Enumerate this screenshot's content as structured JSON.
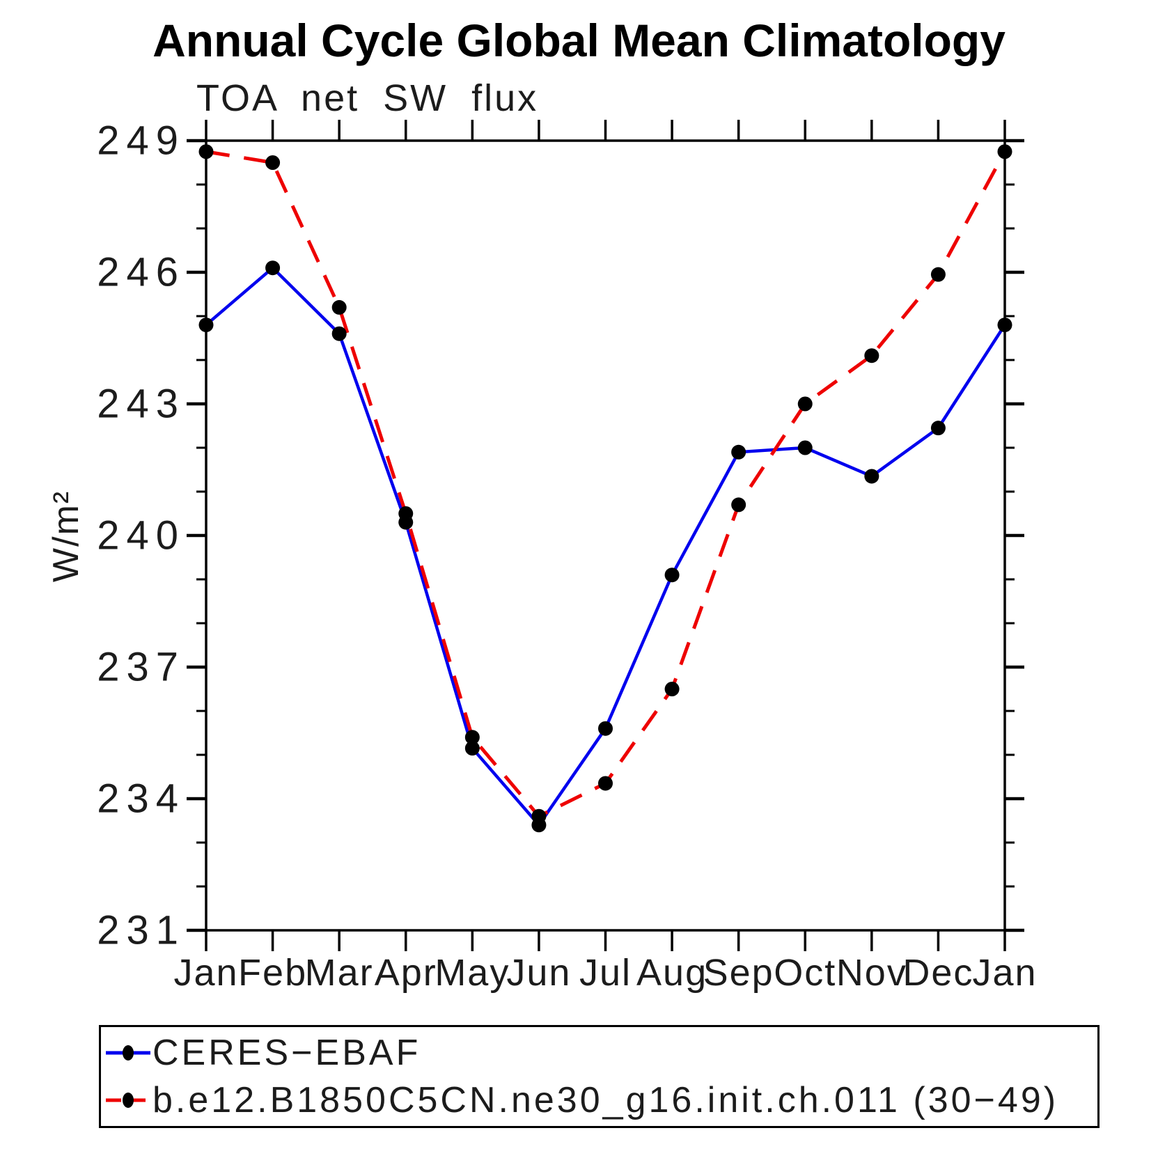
{
  "chart_data": {
    "type": "line",
    "title": "Annual Cycle Global Mean Climatology",
    "subtitle": "TOA net SW flux",
    "ylabel": "W/m²",
    "xlabel": "",
    "x_categories": [
      "Jan",
      "Feb",
      "Mar",
      "Apr",
      "May",
      "Jun",
      "Jul",
      "Aug",
      "Sep",
      "Oct",
      "Nov",
      "Dec",
      "Jan"
    ],
    "ylim": [
      231,
      249
    ],
    "ytick_major_interval": 3,
    "ytick_minor_interval": 1,
    "ytick_labels": [
      "231",
      "234",
      "237",
      "240",
      "243",
      "246",
      "249"
    ],
    "grid": false,
    "legend_position": "bottom-box",
    "axis_color": "#000000",
    "series": [
      {
        "name": "CERES−EBAF",
        "color": "#0000ee",
        "line_style": "solid",
        "marker": "filled-circle",
        "marker_color": "#000000",
        "values": [
          244.8,
          246.1,
          244.6,
          240.3,
          235.15,
          233.4,
          235.6,
          239.1,
          241.9,
          242.0,
          241.35,
          242.45,
          244.8
        ]
      },
      {
        "name": "b.e12.B1850C5CN.ne30_g16.init.ch.011 (30−49)",
        "color": "#ee0000",
        "line_style": "dashed",
        "marker": "filled-circle",
        "marker_color": "#000000",
        "values": [
          248.75,
          248.5,
          245.2,
          240.5,
          235.4,
          233.6,
          234.35,
          236.5,
          240.7,
          243.0,
          244.1,
          245.95,
          248.75
        ]
      }
    ]
  }
}
